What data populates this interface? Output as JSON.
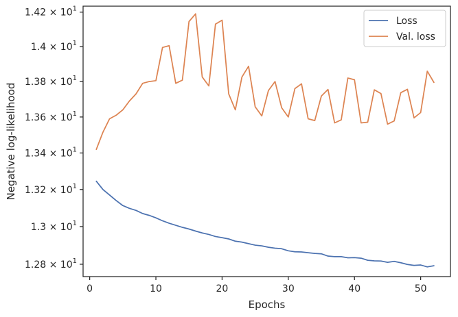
{
  "chart_data": {
    "type": "line",
    "title": "",
    "xlabel": "Epochs",
    "ylabel": "Negative log-likelihood",
    "xlim": [
      -1,
      54.5
    ],
    "ylim": [
      12.735,
      14.235
    ],
    "x_ticks": [
      0,
      10,
      20,
      30,
      40,
      50
    ],
    "x_tick_labels": [
      "0",
      "10",
      "20",
      "30",
      "40",
      "50"
    ],
    "y_ticks": [
      12.8,
      13.0,
      13.2,
      13.4,
      13.6,
      13.8,
      14.0,
      14.2
    ],
    "y_tick_labels": [
      {
        "mantissa": "1.28",
        "base": "10",
        "exp": "1"
      },
      {
        "mantissa": "1.3",
        "base": "10",
        "exp": "1"
      },
      {
        "mantissa": "1.32",
        "base": "10",
        "exp": "1"
      },
      {
        "mantissa": "1.34",
        "base": "10",
        "exp": "1"
      },
      {
        "mantissa": "1.36",
        "base": "10",
        "exp": "1"
      },
      {
        "mantissa": "1.38",
        "base": "10",
        "exp": "1"
      },
      {
        "mantissa": "1.4",
        "base": "10",
        "exp": "1"
      },
      {
        "mantissa": "1.42",
        "base": "10",
        "exp": "1"
      }
    ],
    "y_scale": "log",
    "grid": false,
    "legend_position": "top-right",
    "series": [
      {
        "name": "Loss",
        "color": "#4c72b0",
        "x": [
          1,
          2,
          3,
          4,
          5,
          6,
          7,
          8,
          9,
          10,
          11,
          12,
          13,
          14,
          15,
          16,
          17,
          18,
          19,
          20,
          21,
          22,
          23,
          24,
          25,
          26,
          27,
          28,
          29,
          30,
          31,
          32,
          33,
          34,
          35,
          36,
          37,
          38,
          39,
          40,
          41,
          42,
          43,
          44,
          45,
          46,
          47,
          48,
          49,
          50,
          51,
          52
        ],
        "y": [
          13.245,
          13.2,
          13.17,
          13.14,
          13.113,
          13.098,
          13.087,
          13.07,
          13.06,
          13.047,
          13.031,
          13.018,
          13.007,
          12.996,
          12.987,
          12.976,
          12.966,
          12.958,
          12.947,
          12.941,
          12.934,
          12.922,
          12.917,
          12.909,
          12.901,
          12.897,
          12.89,
          12.885,
          12.882,
          12.871,
          12.866,
          12.865,
          12.861,
          12.857,
          12.855,
          12.843,
          12.84,
          12.84,
          12.834,
          12.835,
          12.832,
          12.821,
          12.818,
          12.817,
          12.81,
          12.815,
          12.808,
          12.799,
          12.794,
          12.796,
          12.786,
          12.792
        ]
      },
      {
        "name": "Val. loss",
        "color": "#dd8452",
        "x": [
          1,
          2,
          3,
          4,
          5,
          6,
          7,
          8,
          9,
          10,
          11,
          12,
          13,
          14,
          15,
          16,
          17,
          18,
          19,
          20,
          21,
          22,
          23,
          24,
          25,
          26,
          27,
          28,
          29,
          30,
          31,
          32,
          33,
          34,
          35,
          36,
          37,
          38,
          39,
          40,
          41,
          42,
          43,
          44,
          45,
          46,
          47,
          48,
          49,
          50,
          51,
          52
        ],
        "y": [
          13.42,
          13.515,
          13.59,
          13.61,
          13.64,
          13.69,
          13.73,
          13.79,
          13.8,
          13.805,
          13.995,
          14.005,
          13.79,
          13.808,
          14.145,
          14.19,
          13.826,
          13.775,
          14.13,
          14.153,
          13.73,
          13.64,
          13.826,
          13.887,
          13.657,
          13.606,
          13.749,
          13.8,
          13.652,
          13.6,
          13.76,
          13.787,
          13.59,
          13.58,
          13.718,
          13.755,
          13.567,
          13.584,
          13.82,
          13.81,
          13.567,
          13.571,
          13.753,
          13.732,
          13.56,
          13.578,
          13.737,
          13.756,
          13.595,
          13.625,
          13.859,
          13.795
        ]
      }
    ]
  }
}
